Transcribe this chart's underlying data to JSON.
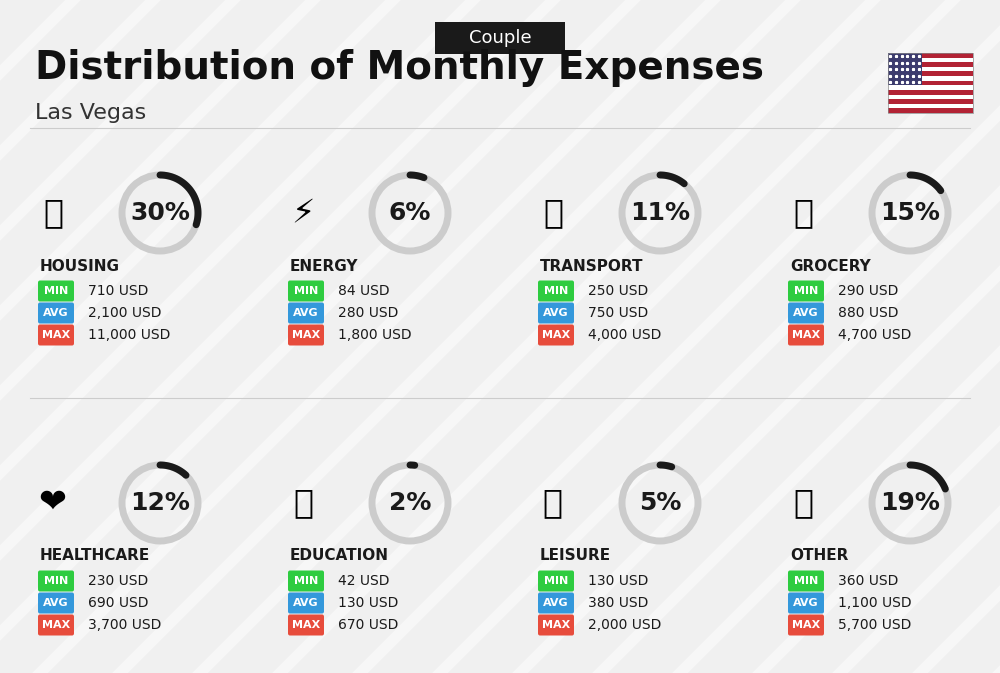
{
  "title": "Distribution of Monthly Expenses",
  "subtitle": "Las Vegas",
  "badge": "Couple",
  "bg_color": "#f0f0f0",
  "categories": [
    {
      "name": "HOUSING",
      "pct": 30,
      "min_val": "710 USD",
      "avg_val": "2,100 USD",
      "max_val": "11,000 USD",
      "col": 0,
      "row": 0
    },
    {
      "name": "ENERGY",
      "pct": 6,
      "min_val": "84 USD",
      "avg_val": "280 USD",
      "max_val": "1,800 USD",
      "col": 1,
      "row": 0
    },
    {
      "name": "TRANSPORT",
      "pct": 11,
      "min_val": "250 USD",
      "avg_val": "750 USD",
      "max_val": "4,000 USD",
      "col": 2,
      "row": 0
    },
    {
      "name": "GROCERY",
      "pct": 15,
      "min_val": "290 USD",
      "avg_val": "880 USD",
      "max_val": "4,700 USD",
      "col": 3,
      "row": 0
    },
    {
      "name": "HEALTHCARE",
      "pct": 12,
      "min_val": "230 USD",
      "avg_val": "690 USD",
      "max_val": "3,700 USD",
      "col": 0,
      "row": 1
    },
    {
      "name": "EDUCATION",
      "pct": 2,
      "min_val": "42 USD",
      "avg_val": "130 USD",
      "max_val": "670 USD",
      "col": 1,
      "row": 1
    },
    {
      "name": "LEISURE",
      "pct": 5,
      "min_val": "130 USD",
      "avg_val": "380 USD",
      "max_val": "2,000 USD",
      "col": 2,
      "row": 1
    },
    {
      "name": "OTHER",
      "pct": 19,
      "min_val": "360 USD",
      "avg_val": "1,100 USD",
      "max_val": "5,700 USD",
      "col": 3,
      "row": 1
    }
  ],
  "min_color": "#2ecc40",
  "avg_color": "#3498db",
  "max_color": "#e74c3c",
  "arc_color_filled": "#1a1a1a",
  "arc_color_empty": "#cccccc",
  "title_fontsize": 28,
  "subtitle_fontsize": 16,
  "badge_fontsize": 13,
  "cat_fontsize": 11,
  "pct_fontsize": 18,
  "val_fontsize": 10,
  "label_fontsize": 8
}
